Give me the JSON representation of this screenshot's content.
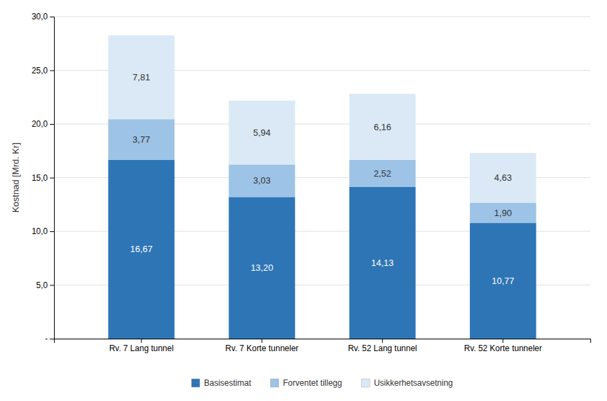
{
  "chart_data": {
    "type": "bar",
    "stacked": true,
    "categories": [
      "Rv. 7 Lang tunnel",
      "Rv. 7 Korte tunneler",
      "Rv. 52 Lang tunnel",
      "Rv. 52 Korte tunneler"
    ],
    "series": [
      {
        "name": "Basisestimat",
        "color": "#2E75B6",
        "values": [
          16.67,
          13.2,
          14.13,
          10.77
        ],
        "value_labels": [
          "16,67",
          "13,20",
          "14,13",
          "10,77"
        ]
      },
      {
        "name": "Forventet tillegg",
        "color": "#9DC3E6",
        "values": [
          3.77,
          3.03,
          2.52,
          1.9
        ],
        "value_labels": [
          "3,77",
          "3,03",
          "2,52",
          "1,90"
        ]
      },
      {
        "name": "Usikkerhetsavsetning",
        "color": "#DAE9F5",
        "values": [
          7.81,
          5.94,
          6.16,
          4.63
        ],
        "value_labels": [
          "7,81",
          "5,94",
          "6,16",
          "4,63"
        ]
      }
    ],
    "y_label": "Kostnad [Mrd. Kr]",
    "ylim": [
      0,
      30.0
    ],
    "yticks": [
      {
        "value": 0,
        "label": "-"
      },
      {
        "value": 5.0,
        "label": "5,0"
      },
      {
        "value": 10.0,
        "label": "10,0"
      },
      {
        "value": 15.0,
        "label": "15,0"
      },
      {
        "value": 20.0,
        "label": "20,0"
      },
      {
        "value": 25.0,
        "label": "25,0"
      },
      {
        "value": 30.0,
        "label": "30,0"
      }
    ],
    "grid": true,
    "data_labels": true,
    "legend": "bottom"
  }
}
